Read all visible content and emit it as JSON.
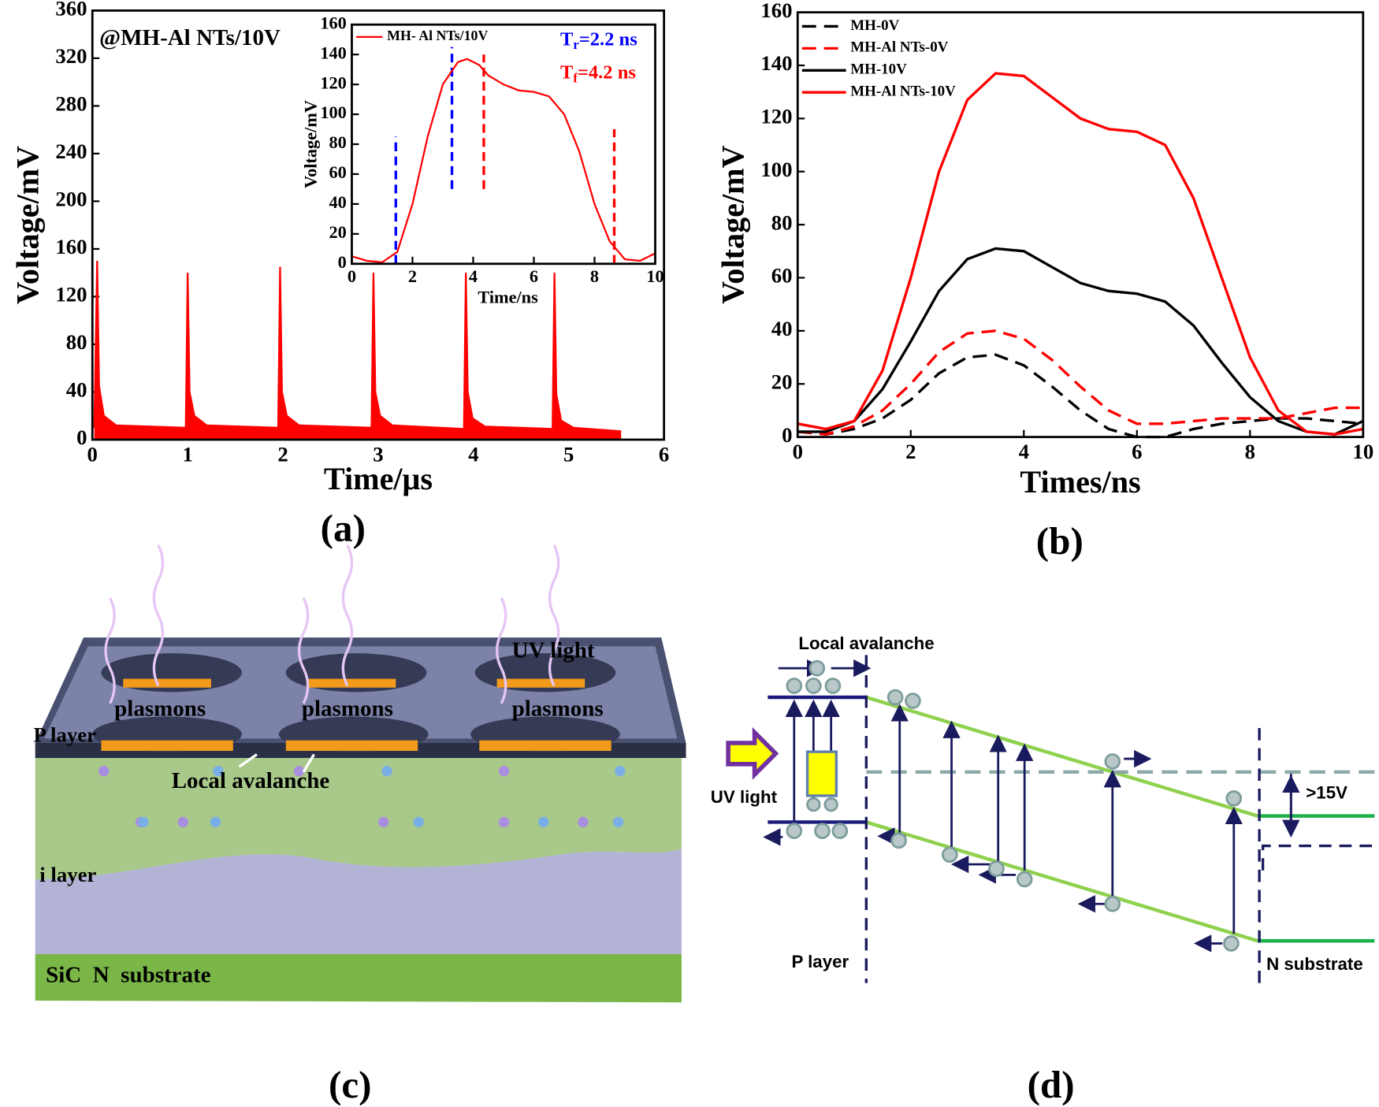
{
  "chart_data": [
    {
      "type": "line",
      "annotation": "@MH-Al NTs/10V",
      "xlabel": "Time/μs",
      "ylabel": "Voltage/mV",
      "xlim": [
        0,
        6
      ],
      "ylim": [
        0,
        360
      ],
      "xticks": [
        0,
        1,
        2,
        3,
        4,
        5,
        6
      ],
      "yticks": [
        0,
        40,
        80,
        120,
        160,
        200,
        240,
        280,
        320,
        360
      ],
      "fill": true,
      "series": [
        {
          "color": "#ff0000",
          "x": [
            0.02,
            0.05,
            0.07,
            0.12,
            0.25,
            0.98,
            1.0,
            1.02,
            1.07,
            1.2,
            1.95,
            1.97,
            1.99,
            2.04,
            2.17,
            2.93,
            2.95,
            2.97,
            3.02,
            3.15,
            3.9,
            3.92,
            3.94,
            3.99,
            4.12,
            4.83,
            4.85,
            4.87,
            4.92,
            5.05,
            5.55
          ],
          "values": [
            10,
            150,
            45,
            20,
            12,
            10,
            140,
            40,
            20,
            12,
            10,
            145,
            40,
            20,
            12,
            10,
            140,
            40,
            20,
            12,
            9,
            140,
            40,
            18,
            11,
            9,
            140,
            38,
            16,
            10,
            7
          ]
        }
      ]
    },
    {
      "type": "line",
      "xlabel": "Time/ns",
      "ylabel": "Voltage/mV",
      "legend": "upper left",
      "xlim": [
        0,
        10
      ],
      "ylim": [
        0,
        160
      ],
      "xticks": [
        0,
        2,
        4,
        6,
        8,
        10
      ],
      "yticks": [
        0,
        20,
        40,
        60,
        80,
        100,
        120,
        140,
        160
      ],
      "series": [
        {
          "name": "MH- Al NTs/10V",
          "color": "#ff0000",
          "x": [
            0,
            0.5,
            1,
            1.5,
            2,
            2.5,
            3,
            3.5,
            3.8,
            4.2,
            4.5,
            5,
            5.5,
            6,
            6.5,
            7,
            7.5,
            8,
            8.5,
            9,
            9.5,
            10
          ],
          "values": [
            5,
            2,
            1,
            8,
            40,
            85,
            120,
            135,
            137,
            133,
            126,
            120,
            116,
            115,
            112,
            100,
            75,
            40,
            15,
            3,
            2,
            7
          ]
        }
      ],
      "markers": [
        {
          "x": 1.45,
          "y": [
            0,
            85
          ],
          "color": "#0000ff"
        },
        {
          "x": 3.3,
          "y": [
            50,
            145
          ],
          "color": "#0000ff"
        },
        {
          "x": 4.35,
          "y": [
            50,
            140
          ],
          "color": "#ff0000"
        },
        {
          "x": 8.65,
          "y": [
            0,
            90
          ],
          "color": "#ff0000"
        }
      ],
      "annotations": [
        {
          "base": "T",
          "sub": "r",
          "rest": "=2.2 ns",
          "color": "#0000ff"
        },
        {
          "base": "T",
          "sub": "f",
          "rest": "=4.2 ns",
          "color": "#ff0000"
        }
      ]
    },
    {
      "type": "line",
      "xlabel": "Times/ns",
      "ylabel": "Voltage/mV",
      "legend": "upper left",
      "xlim": [
        0,
        10
      ],
      "ylim": [
        0,
        160
      ],
      "xticks": [
        0,
        2,
        4,
        6,
        8,
        10
      ],
      "yticks": [
        0,
        20,
        40,
        60,
        80,
        100,
        120,
        140,
        160
      ],
      "series": [
        {
          "name": "MH-0V",
          "color": "#000000",
          "dashed": true,
          "x": [
            0,
            0.5,
            1,
            1.5,
            2,
            2.5,
            3,
            3.5,
            4,
            4.5,
            5,
            5.5,
            6,
            6.5,
            7,
            7.5,
            8,
            8.5,
            9,
            9.5,
            10
          ],
          "values": [
            2,
            1,
            3,
            7,
            14,
            24,
            30,
            31,
            27,
            19,
            10,
            3,
            0,
            0,
            3,
            5,
            6,
            7,
            7,
            6,
            5
          ]
        },
        {
          "name": "MH-Al NTs-0V",
          "color": "#ff0000",
          "dashed": true,
          "x": [
            0,
            0.5,
            1,
            1.5,
            2,
            2.5,
            3,
            3.5,
            4,
            4.5,
            5,
            5.5,
            6,
            6.5,
            7,
            7.5,
            8,
            8.5,
            9,
            9.5,
            10
          ],
          "values": [
            2,
            1,
            4,
            10,
            20,
            32,
            39,
            40,
            37,
            29,
            19,
            10,
            5,
            5,
            6,
            7,
            7,
            7,
            9,
            11,
            11
          ]
        },
        {
          "name": "MH-10V",
          "color": "#000000",
          "x": [
            0,
            0.5,
            1,
            1.5,
            2,
            2.5,
            3,
            3.5,
            4,
            4.5,
            5,
            5.5,
            6,
            6.5,
            7,
            7.5,
            8,
            8.5,
            9,
            9.5,
            10
          ],
          "values": [
            2,
            2,
            6,
            18,
            36,
            55,
            67,
            71,
            70,
            64,
            58,
            55,
            54,
            51,
            42,
            28,
            15,
            6,
            2,
            1,
            6
          ]
        },
        {
          "name": "MH-Al NTs-10V",
          "color": "#ff0000",
          "x": [
            0,
            0.5,
            1,
            1.5,
            2,
            2.5,
            3,
            3.5,
            4,
            4.5,
            5,
            5.5,
            6,
            6.5,
            7,
            7.5,
            8,
            8.5,
            9,
            9.5,
            10
          ],
          "values": [
            5,
            3,
            6,
            25,
            60,
            100,
            127,
            137,
            136,
            128,
            120,
            116,
            115,
            110,
            90,
            60,
            30,
            10,
            2,
            1,
            3
          ]
        }
      ]
    }
  ],
  "panel_labels": [
    "(a)",
    "(b)",
    "(c)",
    "(d)"
  ],
  "diagram_c": {
    "uv_light": "UV light",
    "plasmons": [
      "plasmons",
      "plasmons",
      "plasmons"
    ],
    "p_layer": "P layer",
    "local_avalanche": "Local avalanche",
    "i_layer": "i layer",
    "substrate": "SiC  N  substrate"
  },
  "diagram_d": {
    "local_avalanche": "Local avalanche",
    "uv_light": "UV light",
    "p_layer": "P layer",
    "n_substrate": "N substrate",
    "voltage": ">15V"
  }
}
